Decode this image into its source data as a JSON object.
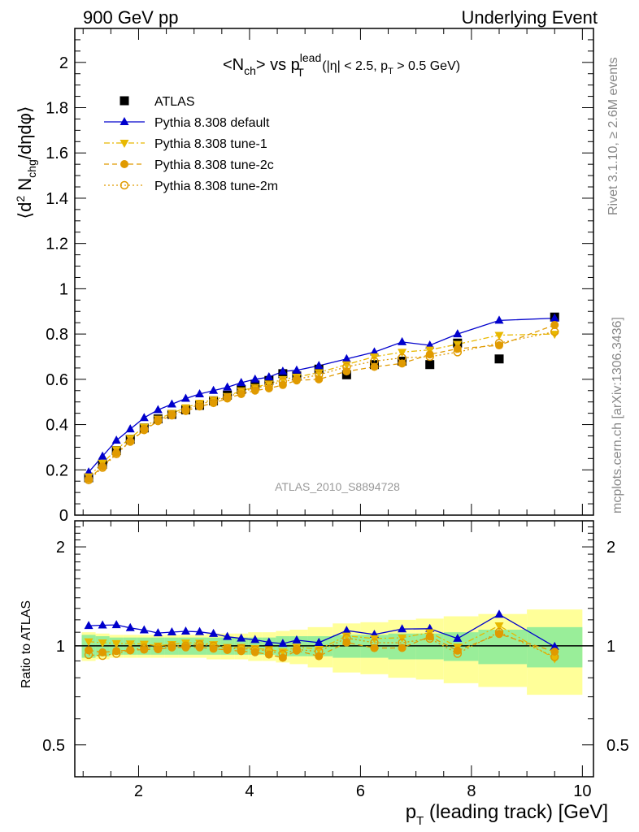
{
  "header": {
    "left": "900 GeV pp",
    "right": "Underlying Event"
  },
  "side_labels": {
    "rivet": "Rivet 3.1.10, ≥ 2.6M events",
    "mcplots": "mcplots.cern.ch [arXiv:1306.3436]"
  },
  "chart_data": {
    "type": "scatter",
    "title_main": "<N",
    "title_ch": "ch",
    "title_mid": "> vs p",
    "title_sup": "lead",
    "title_sub": "T",
    "title_cut_a": " (|η| < 2.5, p",
    "title_cut_sub": "T",
    "title_cut_b": " > 0.5 GeV)",
    "analysis_label": "ATLAS_2010_S8894728",
    "ylabel_main": "⟨d² N_chg/dηdφ⟩",
    "ylabel_ratio": "Ratio to ATLAS",
    "xlabel": "p_T (leading track) [GeV]",
    "xlim": [
      0.85,
      10.2
    ],
    "ylim_main": [
      0,
      2.15
    ],
    "ylim_ratio": [
      0.4,
      2.4
    ],
    "x_ticks": [
      2,
      4,
      6,
      8,
      10
    ],
    "y_ticks_main": [
      0,
      0.2,
      0.4,
      0.6,
      0.8,
      1,
      1.2,
      1.4,
      1.6,
      1.8,
      2
    ],
    "y_ticks_ratio": [
      0.5,
      1,
      2
    ],
    "x": [
      1.1,
      1.35,
      1.6,
      1.85,
      2.1,
      2.35,
      2.6,
      2.85,
      3.1,
      3.35,
      3.6,
      3.85,
      4.1,
      4.35,
      4.6,
      4.85,
      5.25,
      5.75,
      6.25,
      6.75,
      7.25,
      7.75,
      8.5,
      9.5
    ],
    "band_inner": [
      0.08,
      0.07,
      0.06,
      0.06,
      0.06,
      0.06,
      0.06,
      0.06,
      0.06,
      0.06,
      0.06,
      0.06,
      0.06,
      0.06,
      0.07,
      0.07,
      0.07,
      0.08,
      0.08,
      0.09,
      0.09,
      0.1,
      0.12,
      0.14
    ],
    "band_outer": [
      0.1,
      0.09,
      0.08,
      0.08,
      0.08,
      0.08,
      0.08,
      0.08,
      0.08,
      0.09,
      0.09,
      0.09,
      0.1,
      0.1,
      0.11,
      0.12,
      0.14,
      0.17,
      0.18,
      0.2,
      0.21,
      0.23,
      0.25,
      0.29
    ],
    "series": [
      {
        "name": "ATLAS",
        "color": "#000000",
        "marker": "square",
        "line": "none",
        "values": [
          0.165,
          0.225,
          0.285,
          0.335,
          0.385,
          0.425,
          0.445,
          0.465,
          0.485,
          0.505,
          0.53,
          0.555,
          0.575,
          0.595,
          0.625,
          0.615,
          0.645,
          0.62,
          0.665,
          0.68,
          0.665,
          0.76,
          0.69,
          0.875
        ]
      },
      {
        "name": "Pythia 8.308 default",
        "color": "#0000cc",
        "marker": "triangle-up",
        "line": "solid",
        "values": [
          0.19,
          0.26,
          0.33,
          0.38,
          0.43,
          0.465,
          0.49,
          0.515,
          0.535,
          0.55,
          0.565,
          0.585,
          0.6,
          0.61,
          0.635,
          0.64,
          0.66,
          0.69,
          0.72,
          0.765,
          0.75,
          0.8,
          0.86,
          0.87
        ]
      },
      {
        "name": "Pythia 8.308 tune-1",
        "color": "#e8b800",
        "marker": "triangle-down",
        "line": "dashdot",
        "values": [
          0.17,
          0.23,
          0.29,
          0.34,
          0.39,
          0.425,
          0.45,
          0.475,
          0.495,
          0.51,
          0.525,
          0.55,
          0.565,
          0.58,
          0.6,
          0.61,
          0.63,
          0.665,
          0.7,
          0.72,
          0.73,
          0.755,
          0.795,
          0.8
        ]
      },
      {
        "name": "Pythia 8.308 tune-2c",
        "color": "#e09a00",
        "marker": "circle",
        "line": "dashed",
        "values": [
          0.16,
          0.215,
          0.275,
          0.325,
          0.375,
          0.415,
          0.44,
          0.46,
          0.48,
          0.495,
          0.515,
          0.535,
          0.55,
          0.56,
          0.575,
          0.595,
          0.6,
          0.635,
          0.655,
          0.67,
          0.71,
          0.735,
          0.75,
          0.84
        ]
      },
      {
        "name": "Pythia 8.308 tune-2m",
        "color": "#e09a00",
        "marker": "circle-open",
        "line": "dotted",
        "values": [
          0.155,
          0.21,
          0.27,
          0.325,
          0.38,
          0.42,
          0.445,
          0.465,
          0.49,
          0.505,
          0.52,
          0.545,
          0.56,
          0.575,
          0.59,
          0.6,
          0.62,
          0.655,
          0.68,
          0.695,
          0.7,
          0.72,
          0.76,
          0.81
        ]
      }
    ]
  }
}
